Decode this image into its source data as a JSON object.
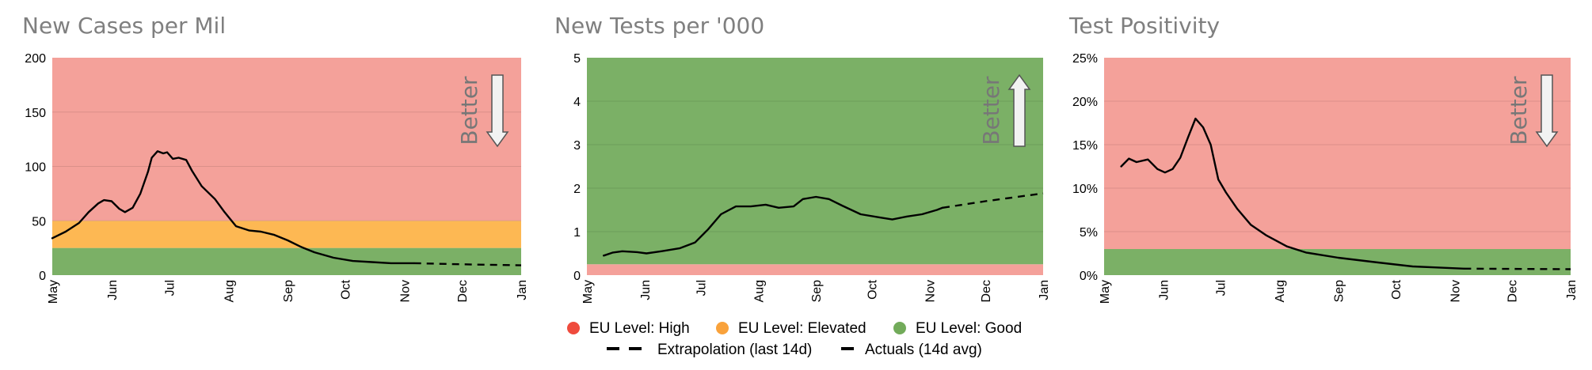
{
  "chart_data": [
    {
      "type": "line",
      "title": "New Cases per Mil",
      "x_tick_labels": [
        "May",
        "Jun",
        "Jul",
        "Aug",
        "Sep",
        "Oct",
        "Nov",
        "Dec",
        "Jan"
      ],
      "xlim": [
        "2020-05-01",
        "2021-01-01"
      ],
      "ylim": [
        0,
        200
      ],
      "y_ticks": [
        0,
        50,
        100,
        150,
        200
      ],
      "y_tick_labels": [
        "0",
        "50",
        "100",
        "150",
        "200"
      ],
      "grid": true,
      "bands": [
        {
          "level": "good",
          "from": 0,
          "to": 25
        },
        {
          "level": "elevated",
          "from": 25,
          "to": 50
        },
        {
          "level": "high",
          "from": 50,
          "to": 200
        }
      ],
      "annotation": {
        "text": "Better",
        "direction": "down"
      },
      "series": [
        {
          "kind": "actual",
          "x": [
            "2020-05-01",
            "2020-05-08",
            "2020-05-15",
            "2020-05-20",
            "2020-05-25",
            "2020-05-28",
            "2020-06-01",
            "2020-06-05",
            "2020-06-08",
            "2020-06-12",
            "2020-06-16",
            "2020-06-20",
            "2020-06-22",
            "2020-06-25",
            "2020-06-28",
            "2020-06-30",
            "2020-07-03",
            "2020-07-06",
            "2020-07-10",
            "2020-07-13",
            "2020-07-18",
            "2020-07-25",
            "2020-07-30",
            "2020-08-05",
            "2020-08-12",
            "2020-08-18",
            "2020-08-25",
            "2020-09-01",
            "2020-09-08",
            "2020-09-15",
            "2020-09-25",
            "2020-10-05",
            "2020-10-15",
            "2020-10-25",
            "2020-11-01",
            "2020-11-06"
          ],
          "y": [
            34,
            40,
            48,
            58,
            66,
            69,
            68,
            61,
            58,
            62,
            75,
            95,
            108,
            114,
            112,
            113,
            107,
            108,
            106,
            96,
            82,
            70,
            58,
            45,
            41,
            40,
            37,
            32,
            26,
            21,
            16,
            13,
            12,
            11,
            11,
            11
          ]
        },
        {
          "kind": "extrapolation",
          "x": [
            "2020-11-06",
            "2020-12-01",
            "2021-01-01"
          ],
          "y": [
            11,
            10,
            9
          ]
        }
      ]
    },
    {
      "type": "line",
      "title": "New Tests per '000",
      "x_tick_labels": [
        "May",
        "Jun",
        "Jul",
        "Aug",
        "Sep",
        "Oct",
        "Nov",
        "Dec",
        "Jan"
      ],
      "xlim": [
        "2020-05-01",
        "2021-01-01"
      ],
      "ylim": [
        0,
        5
      ],
      "y_ticks": [
        0,
        1,
        2,
        3,
        4,
        5
      ],
      "y_tick_labels": [
        "0",
        "1",
        "2",
        "3",
        "4",
        "5"
      ],
      "grid": true,
      "bands": [
        {
          "level": "high",
          "from": 0,
          "to": 0.25
        },
        {
          "level": "good",
          "from": 0.25,
          "to": 5
        }
      ],
      "annotation": {
        "text": "Better",
        "direction": "up"
      },
      "series": [
        {
          "kind": "actual",
          "x": [
            "2020-05-10",
            "2020-05-15",
            "2020-05-20",
            "2020-05-28",
            "2020-06-02",
            "2020-06-10",
            "2020-06-20",
            "2020-06-28",
            "2020-07-05",
            "2020-07-12",
            "2020-07-20",
            "2020-07-28",
            "2020-08-05",
            "2020-08-12",
            "2020-08-20",
            "2020-08-25",
            "2020-09-01",
            "2020-09-08",
            "2020-09-15",
            "2020-09-25",
            "2020-10-05",
            "2020-10-12",
            "2020-10-20",
            "2020-10-28",
            "2020-11-05",
            "2020-11-08"
          ],
          "y": [
            0.45,
            0.52,
            0.55,
            0.53,
            0.5,
            0.55,
            0.62,
            0.75,
            1.05,
            1.4,
            1.58,
            1.58,
            1.62,
            1.55,
            1.58,
            1.75,
            1.8,
            1.75,
            1.6,
            1.4,
            1.33,
            1.28,
            1.35,
            1.4,
            1.5,
            1.55
          ]
        },
        {
          "kind": "extrapolation",
          "x": [
            "2020-11-08",
            "2020-12-01",
            "2021-01-01"
          ],
          "y": [
            1.55,
            1.7,
            1.88
          ]
        }
      ]
    },
    {
      "type": "line",
      "title": "Test Positivity",
      "x_tick_labels": [
        "May",
        "Jun",
        "Jul",
        "Aug",
        "Sep",
        "Oct",
        "Nov",
        "Dec",
        "Jan"
      ],
      "xlim": [
        "2020-05-01",
        "2021-01-01"
      ],
      "ylim": [
        0,
        25
      ],
      "y_ticks": [
        0,
        5,
        10,
        15,
        20,
        25
      ],
      "y_tick_labels": [
        "0%",
        "5%",
        "10%",
        "15%",
        "20%",
        "25%"
      ],
      "grid": true,
      "bands": [
        {
          "level": "good",
          "from": 0,
          "to": 3
        },
        {
          "level": "high",
          "from": 3,
          "to": 25
        }
      ],
      "annotation": {
        "text": "Better",
        "direction": "down"
      },
      "series": [
        {
          "kind": "actual",
          "x": [
            "2020-05-10",
            "2020-05-14",
            "2020-05-18",
            "2020-05-24",
            "2020-05-29",
            "2020-06-02",
            "2020-06-06",
            "2020-06-10",
            "2020-06-14",
            "2020-06-18",
            "2020-06-22",
            "2020-06-26",
            "2020-06-30",
            "2020-07-04",
            "2020-07-10",
            "2020-07-17",
            "2020-07-25",
            "2020-08-05",
            "2020-08-15",
            "2020-09-01",
            "2020-09-20",
            "2020-10-10",
            "2020-10-25",
            "2020-11-06"
          ],
          "y": [
            12.5,
            13.4,
            13.0,
            13.3,
            12.2,
            11.8,
            12.2,
            13.5,
            15.8,
            18.0,
            17.0,
            15.0,
            11.0,
            9.5,
            7.6,
            5.8,
            4.6,
            3.3,
            2.6,
            2.0,
            1.5,
            1.0,
            0.85,
            0.75
          ]
        },
        {
          "kind": "extrapolation",
          "x": [
            "2020-11-06",
            "2020-12-01",
            "2021-01-01"
          ],
          "y": [
            0.75,
            0.72,
            0.68
          ]
        }
      ]
    }
  ],
  "legend": {
    "placement": "bottom-center",
    "items": [
      {
        "id": "high",
        "label": "EU Level: High",
        "swatch": "dot"
      },
      {
        "id": "elevated",
        "label": "EU Level: Elevated",
        "swatch": "dot"
      },
      {
        "id": "good",
        "label": "EU Level: Good",
        "swatch": "dot"
      },
      {
        "id": "extrapolation",
        "label": "Extrapolation (last 14d)",
        "swatch": "dashed-line"
      },
      {
        "id": "actual",
        "label": "Actuals (14d avg)",
        "swatch": "solid-line"
      }
    ]
  },
  "colors": {
    "high_band": "#f4a19a",
    "elevated_band": "#fdb853",
    "good_band": "#7bb066",
    "high_dot": "#ef4b3d",
    "elevated_dot": "#f9a23b",
    "good_dot": "#72ab5a",
    "line": "#000000",
    "title": "#7f7f7f",
    "arrow_fill": "#f2f2f2",
    "arrow_stroke": "#555555",
    "annotation_text": "#777777"
  }
}
